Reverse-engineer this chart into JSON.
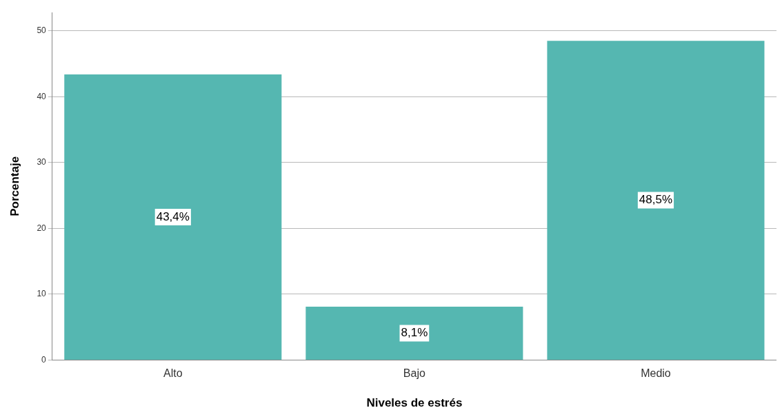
{
  "chart_data": {
    "type": "bar",
    "xlabel": "Niveles de estrés",
    "ylabel": "Porcentaje",
    "categories": [
      "Alto",
      "Bajo",
      "Medio"
    ],
    "values": [
      43.4,
      8.1,
      48.5
    ],
    "value_labels": [
      "43,4%",
      "8,1%",
      "48,5%"
    ],
    "color": "#55b7b1",
    "ylim": [
      0,
      52.8
    ],
    "yticks": [
      0,
      10,
      20,
      30,
      40,
      50
    ],
    "grid": "y"
  }
}
